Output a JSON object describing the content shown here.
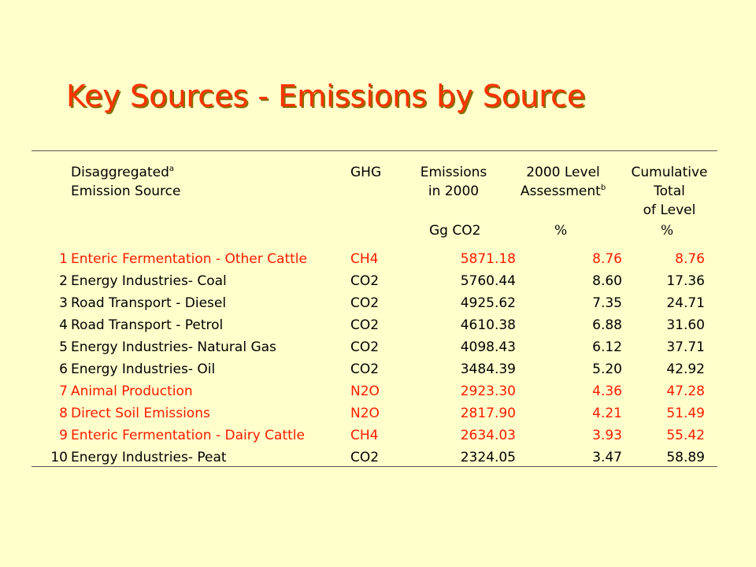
{
  "title": "Key Sources - Emissions by Source",
  "header": {
    "source_line1": "Disaggregated",
    "source_line1_sup": "a",
    "source_line2": "Emission Source",
    "ghg": "GHG",
    "emissions_line1": "Emissions",
    "emissions_line2": "in 2000",
    "level_line1": "2000 Level",
    "level_line2": "Assessment",
    "level_line2_sup": "b",
    "cum_line1": "Cumulative",
    "cum_line2": "Total",
    "cum_line3": "of Level",
    "unit_emissions": "Gg CO2",
    "unit_level": "%",
    "unit_cum": "%"
  },
  "colors": {
    "background": "#ffffcc",
    "title": "#ff3300",
    "highlight_row": "#ff1a00",
    "normal_row": "#000000"
  },
  "rows": [
    {
      "num": "1",
      "source": "Enteric Fermentation - Other Cattle",
      "ghg": "CH4",
      "emissions": "5871.18",
      "level": "8.76",
      "cumulative": "8.76",
      "highlight": true
    },
    {
      "num": "2",
      "source": "Energy Industries- Coal",
      "ghg": "CO2",
      "emissions": "5760.44",
      "level": "8.60",
      "cumulative": "17.36",
      "highlight": false
    },
    {
      "num": "3",
      "source": "Road Transport - Diesel",
      "ghg": "CO2",
      "emissions": "4925.62",
      "level": "7.35",
      "cumulative": "24.71",
      "highlight": false
    },
    {
      "num": "4",
      "source": "Road Transport - Petrol",
      "ghg": "CO2",
      "emissions": "4610.38",
      "level": "6.88",
      "cumulative": "31.60",
      "highlight": false
    },
    {
      "num": "5",
      "source": "Energy Industries- Natural Gas",
      "ghg": "CO2",
      "emissions": "4098.43",
      "level": "6.12",
      "cumulative": "37.71",
      "highlight": false
    },
    {
      "num": "6",
      "source": "Energy Industries- Oil",
      "ghg": "CO2",
      "emissions": "3484.39",
      "level": "5.20",
      "cumulative": "42.92",
      "highlight": false
    },
    {
      "num": "7",
      "source": "Animal Production",
      "ghg": "N2O",
      "emissions": "2923.30",
      "level": "4.36",
      "cumulative": "47.28",
      "highlight": true
    },
    {
      "num": "8",
      "source": "Direct Soil Emissions",
      "ghg": "N2O",
      "emissions": "2817.90",
      "level": "4.21",
      "cumulative": "51.49",
      "highlight": true
    },
    {
      "num": "9",
      "source": "Enteric Fermentation - Dairy Cattle",
      "ghg": "CH4",
      "emissions": "2634.03",
      "level": "3.93",
      "cumulative": "55.42",
      "highlight": true
    },
    {
      "num": "10",
      "source": "Energy Industries- Peat",
      "ghg": "CO2",
      "emissions": "2324.05",
      "level": "3.47",
      "cumulative": "58.89",
      "highlight": false
    }
  ]
}
